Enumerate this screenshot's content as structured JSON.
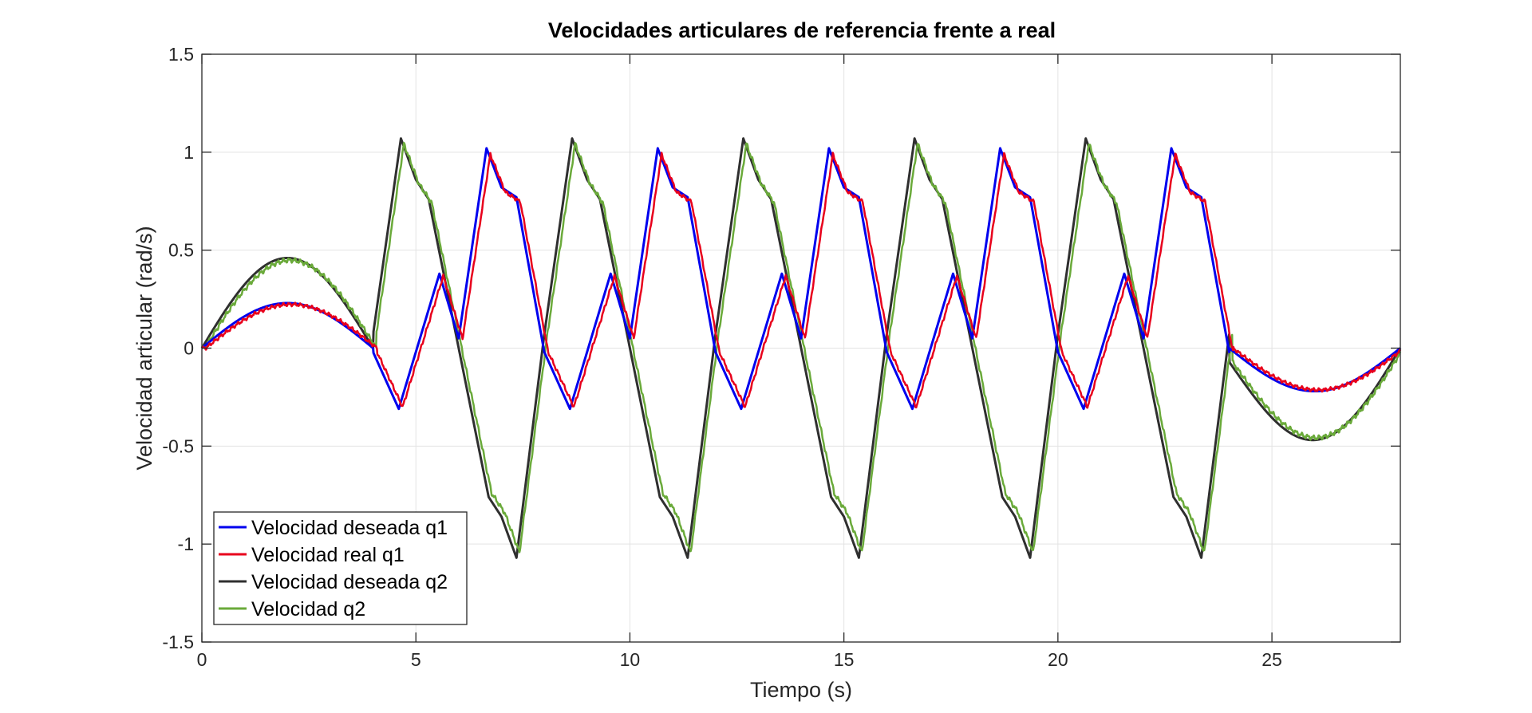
{
  "chart_data": {
    "type": "line",
    "title": "Velocidades articulares de referencia frente a real",
    "xlabel": "Tiempo (s)",
    "ylabel": "Velocidad articular (rad/s)",
    "xlim": [
      0,
      28
    ],
    "ylim": [
      -1.5,
      1.5
    ],
    "xticks": [
      0,
      5,
      10,
      15,
      20,
      25
    ],
    "yticks": [
      -1.5,
      -1,
      -0.5,
      0,
      0.5,
      1,
      1.5
    ],
    "grid": true,
    "legend_position": "bottom-left",
    "colors": {
      "desired_q1": "#0000ee",
      "real_q1": "#e8001c",
      "desired_q2": "#2f2f2f",
      "real_q2": "#6aaa3a",
      "grid": "#e3e3e3",
      "axes": "#262626"
    },
    "series": [
      {
        "name": "Velocidad deseada q1",
        "key": "desired_q1",
        "width": 3
      },
      {
        "name": "Velocidad real q1",
        "key": "real_q1",
        "width": 2.5
      },
      {
        "name": "Velocidad deseada q2",
        "key": "desired_q2",
        "width": 3
      },
      {
        "name": "Velocidad q2",
        "key": "real_q2",
        "width": 2.5
      }
    ],
    "q1_segments": [
      {
        "t0": 0,
        "t1": 4,
        "shape": "arc",
        "peak": 0.23
      },
      {
        "t0": 4,
        "t1": 24,
        "shape": "oscillation",
        "period": 4,
        "phases": [
          {
            "t": 0,
            "v": -0.02
          },
          {
            "t": 0.6,
            "v": -0.31
          },
          {
            "t": 1.55,
            "v": 0.38
          },
          {
            "t": 2.0,
            "v": 0.05
          },
          {
            "t": 2.65,
            "v": 1.02
          },
          {
            "t": 3.0,
            "v": 0.82
          },
          {
            "t": 3.35,
            "v": 0.77
          },
          {
            "t": 4.0,
            "v": -0.02
          }
        ]
      },
      {
        "t0": 24,
        "t1": 28,
        "shape": "arc",
        "peak": -0.22
      }
    ],
    "q2_segments": [
      {
        "t0": 0,
        "t1": 4,
        "shape": "arc",
        "peak": 0.46
      },
      {
        "t0": 4,
        "t1": 24,
        "shape": "oscillation",
        "period": 4,
        "phases": [
          {
            "t": 0,
            "v": 0.07
          },
          {
            "t": 0.65,
            "v": 1.07
          },
          {
            "t": 1.0,
            "v": 0.86
          },
          {
            "t": 1.3,
            "v": 0.76
          },
          {
            "t": 2.0,
            "v": 0.0
          },
          {
            "t": 2.7,
            "v": -0.76
          },
          {
            "t": 3.0,
            "v": -0.86
          },
          {
            "t": 3.35,
            "v": -1.07
          },
          {
            "t": 4.0,
            "v": 0.07
          }
        ]
      },
      {
        "t0": 24,
        "t1": 28,
        "shape": "arc",
        "peak": -0.46,
        "start": -0.07
      }
    ]
  }
}
